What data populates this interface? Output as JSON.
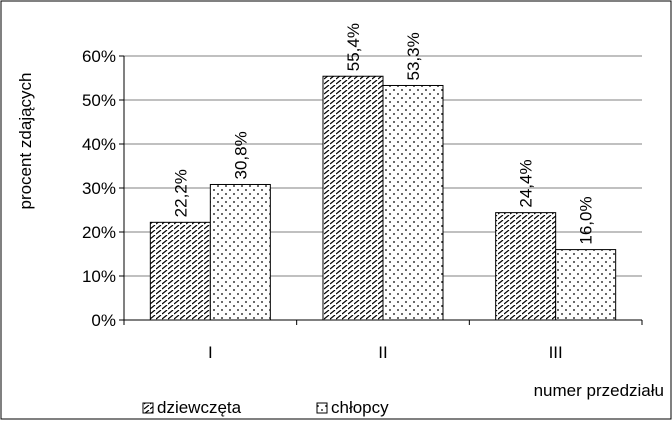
{
  "chart_data": {
    "type": "bar",
    "categories": [
      "I",
      "II",
      "III"
    ],
    "series": [
      {
        "name": "dziewczęta",
        "values": [
          22.2,
          55.4,
          24.4
        ],
        "labels": [
          "22,2%",
          "55,4%",
          "24,4%"
        ],
        "pattern": "diagonal-hatch"
      },
      {
        "name": "chłopcy",
        "values": [
          30.8,
          53.3,
          16.0
        ],
        "labels": [
          "30,8%",
          "53,3%",
          "16,0%"
        ],
        "pattern": "dots"
      }
    ],
    "ylabel": "procent zdających",
    "xlabel": "numer przedziału",
    "ylim": [
      0,
      60
    ],
    "yticks": [
      0,
      10,
      20,
      30,
      40,
      50,
      60
    ],
    "ytick_labels": [
      "0%",
      "10%",
      "20%",
      "30%",
      "40%",
      "50%",
      "60%"
    ],
    "grid": true,
    "legend": "bottom-left",
    "colors": {
      "bar_fill": "#ffffff",
      "bar_stroke": "#000000",
      "grid": "#808080"
    }
  }
}
